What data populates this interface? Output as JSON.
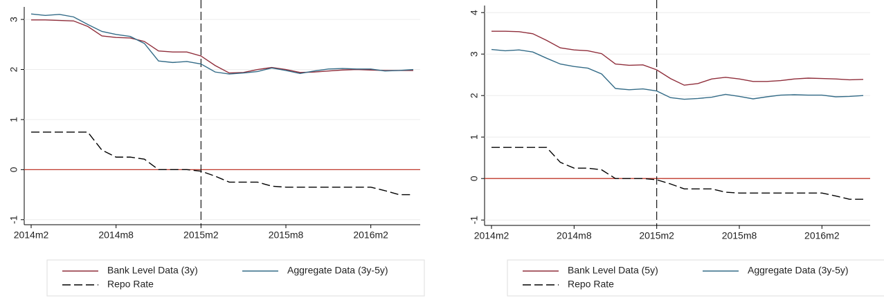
{
  "chart_data": [
    {
      "type": "line",
      "categories": [
        "2014m2",
        null,
        null,
        null,
        null,
        null,
        "2014m8",
        null,
        null,
        null,
        null,
        null,
        "2015m2",
        null,
        null,
        null,
        null,
        null,
        "2015m8",
        null,
        null,
        null,
        null,
        null,
        "2016m2",
        null,
        null,
        null
      ],
      "ylim": [
        -1.1,
        3.25
      ],
      "yticks": [
        -1,
        0,
        1,
        2,
        3
      ],
      "reference_lines": {
        "x": "2015m2",
        "y": 0
      },
      "legend": "bottom",
      "series": [
        {
          "name": "Bank Level Data (3y)",
          "color": "#8f2d3a",
          "dash": "solid",
          "values": [
            2.99,
            2.99,
            2.98,
            2.97,
            2.86,
            2.67,
            2.64,
            2.63,
            2.56,
            2.37,
            2.35,
            2.35,
            2.27,
            2.08,
            1.93,
            1.94,
            2.0,
            2.04,
            2.0,
            1.94,
            1.95,
            1.97,
            1.99,
            2.0,
            1.99,
            1.98,
            1.98,
            1.98
          ]
        },
        {
          "name": "Aggregate Data (3y-5y)",
          "color": "#336b87",
          "dash": "solid",
          "values": [
            3.11,
            3.08,
            3.1,
            3.05,
            2.9,
            2.76,
            2.7,
            2.66,
            2.52,
            2.17,
            2.14,
            2.16,
            2.11,
            1.95,
            1.91,
            1.93,
            1.96,
            2.03,
            1.98,
            1.92,
            1.97,
            2.01,
            2.02,
            2.01,
            2.01,
            1.97,
            1.98,
            2.0
          ]
        },
        {
          "name": "Repo Rate",
          "color": "#000000",
          "dash": "dashed",
          "values": [
            0.75,
            0.75,
            0.75,
            0.75,
            0.75,
            0.39,
            0.25,
            0.25,
            0.21,
            0.0,
            0.0,
            0.0,
            -0.03,
            -0.13,
            -0.25,
            -0.25,
            -0.25,
            -0.33,
            -0.35,
            -0.35,
            -0.35,
            -0.35,
            -0.35,
            -0.35,
            -0.35,
            -0.42,
            -0.5,
            -0.5
          ]
        }
      ]
    },
    {
      "type": "line",
      "categories": [
        "2014m2",
        null,
        null,
        null,
        null,
        null,
        "2014m8",
        null,
        null,
        null,
        null,
        null,
        "2015m2",
        null,
        null,
        null,
        null,
        null,
        "2015m8",
        null,
        null,
        null,
        null,
        null,
        "2016m2",
        null,
        null,
        null
      ],
      "ylim": [
        -1.13,
        4.17
      ],
      "yticks": [
        -1,
        0,
        1,
        2,
        3,
        4
      ],
      "reference_lines": {
        "x": "2015m2",
        "y": 0
      },
      "legend": "bottom",
      "series": [
        {
          "name": "Bank Level Data (5y)",
          "color": "#8f2d3a",
          "dash": "solid",
          "values": [
            3.55,
            3.55,
            3.54,
            3.49,
            3.33,
            3.15,
            3.1,
            3.08,
            3.01,
            2.76,
            2.73,
            2.74,
            2.62,
            2.41,
            2.25,
            2.29,
            2.4,
            2.44,
            2.4,
            2.34,
            2.34,
            2.36,
            2.4,
            2.42,
            2.41,
            2.4,
            2.38,
            2.39
          ]
        },
        {
          "name": "Aggregate Data (3y-5y)",
          "color": "#336b87",
          "dash": "solid",
          "values": [
            3.11,
            3.08,
            3.1,
            3.05,
            2.9,
            2.76,
            2.7,
            2.66,
            2.52,
            2.17,
            2.14,
            2.16,
            2.11,
            1.95,
            1.91,
            1.93,
            1.96,
            2.03,
            1.98,
            1.92,
            1.97,
            2.01,
            2.02,
            2.01,
            2.01,
            1.97,
            1.98,
            2.0
          ]
        },
        {
          "name": "Repo Rate",
          "color": "#000000",
          "dash": "dashed",
          "values": [
            0.75,
            0.75,
            0.75,
            0.75,
            0.75,
            0.39,
            0.25,
            0.25,
            0.21,
            0.0,
            0.0,
            0.0,
            -0.03,
            -0.13,
            -0.25,
            -0.25,
            -0.25,
            -0.33,
            -0.35,
            -0.35,
            -0.35,
            -0.35,
            -0.35,
            -0.35,
            -0.35,
            -0.42,
            -0.5,
            -0.5
          ]
        }
      ]
    }
  ]
}
